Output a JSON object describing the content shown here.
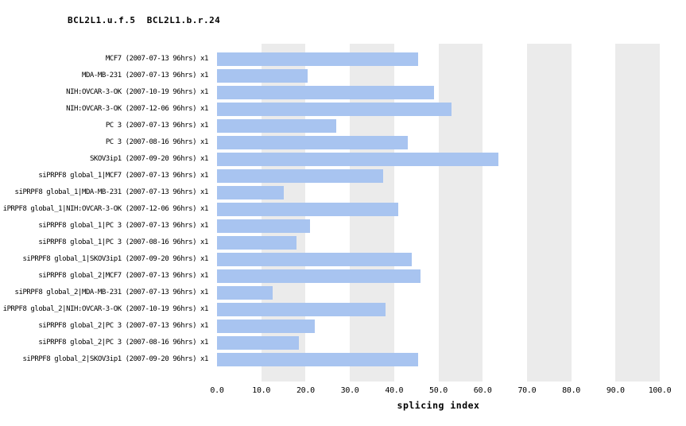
{
  "title": "BCL2L1.u.f.5  BCL2L1.b.r.24",
  "chart_data": {
    "type": "bar",
    "orientation": "horizontal",
    "title": "BCL2L1.u.f.5  BCL2L1.b.r.24",
    "xlabel": "splicing index",
    "ylabel": "",
    "xlim": [
      0,
      100
    ],
    "x_ticks": [
      "0.0",
      "10.0",
      "20.0",
      "30.0",
      "40.0",
      "50.0",
      "60.0",
      "70.0",
      "80.0",
      "90.0",
      "100.0"
    ],
    "grid": "alternating vertical gray bands on odd decades",
    "legend": "none",
    "bar_color": "#a8c4f0",
    "band_color": "#ebebeb",
    "categories": [
      "MCF7 (2007-07-13 96hrs) x1",
      "MDA-MB-231 (2007-07-13 96hrs) x1",
      "NIH:OVCAR-3-OK (2007-10-19 96hrs) x1",
      "NIH:OVCAR-3-OK (2007-12-06 96hrs) x1",
      "PC 3 (2007-07-13 96hrs) x1",
      "PC 3 (2007-08-16 96hrs) x1",
      "SKOV3ip1 (2007-09-20 96hrs) x1",
      "siPRPF8 global_1|MCF7 (2007-07-13 96hrs) x1",
      "siPRPF8 global_1|MDA-MB-231 (2007-07-13 96hrs) x1",
      "iPRPF8 global_1|NIH:OVCAR-3-OK (2007-12-06 96hrs) x1",
      "siPRPF8 global_1|PC 3 (2007-07-13 96hrs) x1",
      "siPRPF8 global_1|PC 3 (2007-08-16 96hrs) x1",
      "siPRPF8 global_1|SKOV3ip1 (2007-09-20 96hrs) x1",
      "siPRPF8 global_2|MCF7 (2007-07-13 96hrs) x1",
      "siPRPF8 global_2|MDA-MB-231 (2007-07-13 96hrs) x1",
      "iPRPF8 global_2|NIH:OVCAR-3-OK (2007-10-19 96hrs) x1",
      "siPRPF8 global_2|PC 3 (2007-07-13 96hrs) x1",
      "siPRPF8 global_2|PC 3 (2007-08-16 96hrs) x1",
      "siPRPF8 global_2|SKOV3ip1 (2007-09-20 96hrs) x1"
    ],
    "values": [
      45.5,
      20.5,
      49,
      53,
      27,
      43,
      63.5,
      37.5,
      15,
      41,
      21,
      18,
      44,
      46,
      12.5,
      38,
      22,
      18.5,
      45.5
    ]
  }
}
